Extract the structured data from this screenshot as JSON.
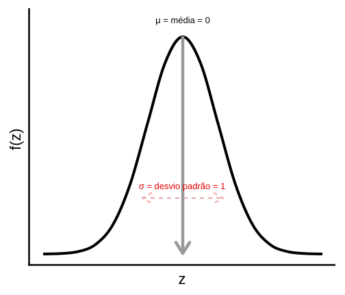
{
  "chart_data": {
    "type": "line",
    "xlabel": "z",
    "ylabel": "f(z)",
    "xlim": [
      -4,
      4
    ],
    "ylim": [
      0,
      0.4
    ],
    "grid": false,
    "series": [
      {
        "x": [
          -4,
          -3.5,
          -3,
          -2.5,
          -2,
          -1.5,
          -1,
          -0.5,
          0,
          0.5,
          1,
          1.5,
          2,
          2.5,
          3,
          3.5,
          4
        ],
        "values": [
          0.0001,
          0.0009,
          0.0044,
          0.0175,
          0.054,
          0.1295,
          0.242,
          0.3521,
          0.3989,
          0.3521,
          0.242,
          0.1295,
          0.054,
          0.0175,
          0.0044,
          0.0009,
          0.0001
        ]
      }
    ],
    "annotations": {
      "mean": {
        "text": "μ =  média = 0",
        "x": 0,
        "color": "#999999"
      },
      "sd": {
        "text": "σ = desvio padrão = 1",
        "x_from": -1,
        "x_to": 1,
        "color": "#e60000",
        "arrow_color": "#f4a0a0"
      }
    }
  }
}
